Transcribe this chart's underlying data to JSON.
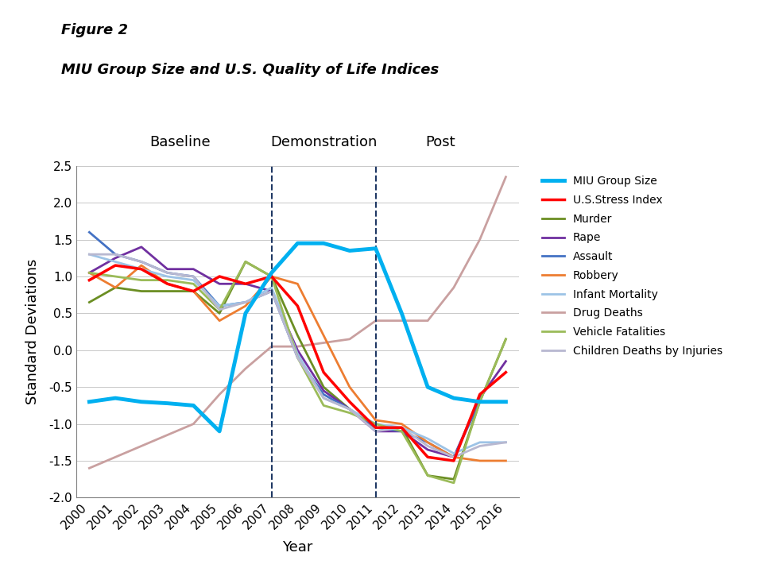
{
  "years": [
    2000,
    2001,
    2002,
    2003,
    2004,
    2005,
    2006,
    2007,
    2008,
    2009,
    2010,
    2011,
    2012,
    2013,
    2014,
    2015,
    2016
  ],
  "series": {
    "MIU Group Size": {
      "color": "#00B0F0",
      "linewidth": 3.5,
      "zorder": 10,
      "values": [
        -0.7,
        -0.65,
        -0.7,
        -0.72,
        -0.75,
        -1.1,
        0.5,
        1.05,
        1.45,
        1.45,
        1.35,
        1.38,
        0.5,
        -0.5,
        -0.65,
        -0.7,
        -0.7
      ]
    },
    "U.S.Stress Index": {
      "color": "#FF0000",
      "linewidth": 2.5,
      "zorder": 9,
      "values": [
        0.95,
        1.15,
        1.1,
        0.9,
        0.8,
        1.0,
        0.9,
        1.0,
        0.6,
        -0.3,
        -0.7,
        -1.05,
        -1.05,
        -1.45,
        -1.5,
        -0.6,
        -0.3
      ]
    },
    "Murder": {
      "color": "#6B8E23",
      "linewidth": 2.0,
      "zorder": 5,
      "values": [
        0.65,
        0.85,
        0.8,
        0.8,
        0.8,
        0.5,
        1.2,
        1.0,
        0.2,
        -0.5,
        -0.8,
        -1.05,
        -1.05,
        -1.7,
        -1.75,
        -0.7,
        0.15
      ]
    },
    "Rape": {
      "color": "#7030A0",
      "linewidth": 2.0,
      "zorder": 5,
      "values": [
        1.05,
        1.25,
        1.4,
        1.1,
        1.1,
        0.9,
        0.9,
        0.8,
        0.0,
        -0.55,
        -0.8,
        -1.1,
        -1.1,
        -1.35,
        -1.45,
        -0.65,
        -0.15
      ]
    },
    "Assault": {
      "color": "#4472C4",
      "linewidth": 2.0,
      "zorder": 5,
      "values": [
        1.6,
        1.3,
        1.2,
        1.05,
        1.0,
        0.6,
        0.65,
        0.8,
        -0.1,
        -0.6,
        -0.8,
        -1.05,
        -1.1,
        -1.25,
        -1.45,
        -0.7,
        -0.7
      ]
    },
    "Robbery": {
      "color": "#ED7D31",
      "linewidth": 2.0,
      "zorder": 5,
      "values": [
        1.05,
        0.85,
        1.15,
        0.9,
        0.8,
        0.4,
        0.6,
        1.0,
        0.9,
        0.2,
        -0.5,
        -0.95,
        -1.0,
        -1.25,
        -1.45,
        -1.5,
        -1.5
      ]
    },
    "Infant Mortality": {
      "color": "#9DC3E6",
      "linewidth": 2.0,
      "zorder": 5,
      "values": [
        1.3,
        1.2,
        1.1,
        1.0,
        0.95,
        0.6,
        0.65,
        0.85,
        -0.05,
        -0.65,
        -0.8,
        -1.0,
        -1.05,
        -1.2,
        -1.4,
        -1.25,
        -1.25
      ]
    },
    "Drug Deaths": {
      "color": "#C9A0A0",
      "linewidth": 2.0,
      "zorder": 4,
      "values": [
        -1.6,
        -1.45,
        -1.3,
        -1.15,
        -1.0,
        -0.6,
        -0.25,
        0.05,
        0.05,
        0.1,
        0.15,
        0.4,
        0.4,
        0.4,
        0.85,
        1.5,
        2.35
      ]
    },
    "Vehicle Fatalities": {
      "color": "#9BBB59",
      "linewidth": 2.0,
      "zorder": 5,
      "values": [
        1.05,
        1.0,
        0.95,
        0.95,
        0.9,
        0.55,
        1.2,
        1.0,
        -0.1,
        -0.75,
        -0.85,
        -1.0,
        -1.1,
        -1.7,
        -1.8,
        -0.7,
        0.15
      ]
    },
    "Children Deaths by Injuries": {
      "color": "#B8B8D0",
      "linewidth": 2.0,
      "zorder": 5,
      "values": [
        1.3,
        1.3,
        1.2,
        1.05,
        1.0,
        0.55,
        0.65,
        0.8,
        -0.1,
        -0.65,
        -0.8,
        -1.1,
        -1.05,
        -1.3,
        -1.45,
        -1.3,
        -1.25
      ]
    }
  },
  "vlines": [
    2007,
    2011
  ],
  "vline_color": "#1F3864",
  "region_labels": [
    {
      "label": "Baseline",
      "x_data": 2003.5
    },
    {
      "label": "Demonstration",
      "x_data": 2009.0
    },
    {
      "label": "Post",
      "x_data": 2013.5
    }
  ],
  "xlabel": "Year",
  "ylabel": "Standard Deviations",
  "ylim": [
    -2.0,
    2.5
  ],
  "yticks": [
    -2.0,
    -1.5,
    -1.0,
    -0.5,
    0.0,
    0.5,
    1.0,
    1.5,
    2.0,
    2.5
  ],
  "figure_label": "Figure 2",
  "title": "MIU Group Size and U.S. Quality of Life Indices",
  "background_color": "#FFFFFF",
  "legend_fontsize": 10,
  "axis_fontsize": 11,
  "label_fontsize": 13,
  "region_label_fontsize": 13
}
